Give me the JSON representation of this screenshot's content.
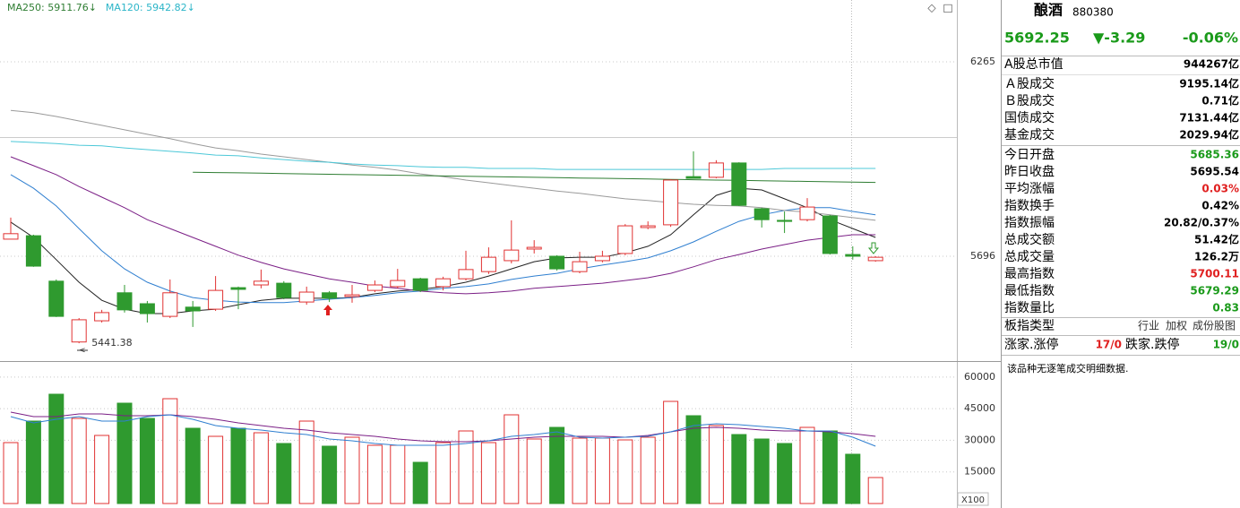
{
  "legend": [
    {
      "text": "MA250: 5911.76↓",
      "color": "#2e7d32"
    },
    {
      "text": "MA120: 5942.82↓",
      "color": "#2bb5c8"
    }
  ],
  "chart_data": [
    {
      "type": "candlestick",
      "up_color": "#e03232",
      "down_color": "#2f9a2f",
      "open": [
        5746,
        5756,
        5623,
        5445,
        5507,
        5589,
        5557,
        5520,
        5547,
        5541,
        5604,
        5612,
        5617,
        5562,
        5589,
        5578,
        5596,
        5607,
        5630,
        5607,
        5630,
        5651,
        5683,
        5717,
        5696,
        5651,
        5683,
        5704,
        5780,
        5788,
        5929,
        5927,
        5969,
        5835,
        5801,
        5803,
        5814,
        5701,
        5683
      ],
      "high": [
        5809,
        5759,
        5628,
        5515,
        5539,
        5612,
        5565,
        5628,
        5565,
        5638,
        5607,
        5657,
        5623,
        5607,
        5594,
        5612,
        5625,
        5659,
        5633,
        5636,
        5712,
        5722,
        5801,
        5743,
        5699,
        5709,
        5712,
        5790,
        5798,
        5921,
        6003,
        5977,
        5971,
        5838,
        5827,
        5866,
        5817,
        5725,
        5696
      ],
      "low": [
        5746,
        5665,
        5518,
        5441.38,
        5502,
        5531,
        5502,
        5515,
        5489,
        5536,
        5541,
        5602,
        5570,
        5554,
        5562,
        5560,
        5591,
        5602,
        5591,
        5596,
        5625,
        5644,
        5675,
        5704,
        5654,
        5646,
        5678,
        5699,
        5775,
        5782,
        5924,
        5924,
        5843,
        5780,
        5764,
        5798,
        5701,
        5686,
        5680
      ],
      "close": [
        5762,
        5667,
        5520,
        5510,
        5531,
        5539,
        5528,
        5589,
        5536,
        5596,
        5599,
        5623,
        5575,
        5591,
        5573,
        5583,
        5612,
        5625,
        5596,
        5630,
        5657,
        5693,
        5714,
        5722,
        5659,
        5680,
        5696,
        5785,
        5785,
        5919,
        5924,
        5969,
        5845,
        5803,
        5798,
        5840,
        5704,
        5696,
        5693
      ],
      "ylim": [
        5397,
        6446
      ],
      "yticks": [
        5696,
        6265
      ],
      "series": [
        {
          "color": "#222222",
          "values": [
            5796,
            5751,
            5686,
            5620,
            5567,
            5541,
            5528,
            5528,
            5536,
            5541,
            5554,
            5567,
            5573,
            5573,
            5573,
            5575,
            5586,
            5594,
            5599,
            5607,
            5620,
            5638,
            5659,
            5680,
            5691,
            5693,
            5693,
            5706,
            5725,
            5759,
            5817,
            5874,
            5895,
            5890,
            5864,
            5838,
            5803,
            5777,
            5751
          ]
        },
        {
          "color": "#2f7fd0",
          "values": [
            5935,
            5895,
            5843,
            5777,
            5712,
            5659,
            5620,
            5594,
            5575,
            5567,
            5562,
            5560,
            5560,
            5565,
            5570,
            5575,
            5581,
            5589,
            5594,
            5602,
            5607,
            5615,
            5628,
            5638,
            5646,
            5659,
            5670,
            5680,
            5691,
            5712,
            5738,
            5769,
            5798,
            5817,
            5830,
            5838,
            5838,
            5827,
            5817
          ]
        },
        {
          "color": "#7b1f86",
          "values": [
            5987,
            5961,
            5935,
            5900,
            5869,
            5838,
            5803,
            5777,
            5751,
            5725,
            5699,
            5678,
            5659,
            5644,
            5630,
            5620,
            5609,
            5602,
            5594,
            5589,
            5586,
            5589,
            5594,
            5602,
            5607,
            5612,
            5617,
            5625,
            5633,
            5646,
            5665,
            5686,
            5701,
            5717,
            5730,
            5743,
            5751,
            5759,
            5759
          ]
        },
        {
          "color": "#9a9a9a",
          "values": [
            6123,
            6116,
            6105,
            6092,
            6079,
            6066,
            6053,
            6040,
            6026,
            6013,
            6005,
            5995,
            5987,
            5979,
            5971,
            5963,
            5956,
            5948,
            5937,
            5929,
            5919,
            5911,
            5903,
            5895,
            5887,
            5880,
            5872,
            5864,
            5859,
            5853,
            5848,
            5845,
            5843,
            5838,
            5830,
            5825,
            5817,
            5809,
            5801
          ]
        },
        {
          "color": "#4cc8d8",
          "values": [
            6032,
            6029,
            6026,
            6021,
            6019,
            6013,
            6008,
            6003,
            5998,
            5992,
            5990,
            5984,
            5979,
            5974,
            5971,
            5966,
            5963,
            5961,
            5958,
            5956,
            5956,
            5953,
            5953,
            5953,
            5950,
            5950,
            5950,
            5950,
            5950,
            5950,
            5950,
            5950,
            5950,
            5950,
            5953,
            5953,
            5953,
            5953,
            5953
          ]
        },
        {
          "color": "#2e7d32",
          "values": [
            null,
            null,
            null,
            null,
            null,
            null,
            null,
            null,
            5942,
            5941,
            5940,
            5939,
            5938,
            5937,
            5936,
            5935,
            5934,
            5933,
            5932,
            5931,
            5930,
            5929,
            5928,
            5927,
            5926,
            5925,
            5924,
            5923,
            5922,
            5921,
            5920,
            5919,
            5918,
            5917,
            5916,
            5915,
            5914,
            5913,
            5912
          ]
        }
      ]
    },
    {
      "type": "bar",
      "unit": "X100",
      "values": [
        28900,
        39100,
        51850,
        40375,
        32300,
        47600,
        40375,
        49725,
        35700,
        31875,
        35700,
        33575,
        28475,
        39100,
        27200,
        31450,
        27625,
        27625,
        19550,
        28900,
        34425,
        28900,
        42075,
        30600,
        36125,
        31025,
        31025,
        30175,
        31450,
        48450,
        41650,
        36975,
        32725,
        30600,
        28475,
        36125,
        34425,
        23375,
        12325
      ],
      "ylim": [
        0,
        66725
      ],
      "yticks": [
        15000,
        30000,
        45000,
        60000
      ],
      "series": [
        {
          "color": "#7b1f86",
          "values": [
            43350,
            41225,
            41225,
            42500,
            42500,
            41650,
            41650,
            42075,
            41225,
            39950,
            38250,
            36975,
            35700,
            34850,
            33575,
            32725,
            31875,
            30600,
            29750,
            29325,
            29325,
            29750,
            30600,
            31450,
            31875,
            31875,
            31875,
            31450,
            32300,
            34000,
            35700,
            36125,
            35700,
            34850,
            34425,
            34425,
            34000,
            33150,
            31875
          ]
        },
        {
          "color": "#2f7fd0",
          "values": [
            41225,
            38250,
            39950,
            41225,
            39100,
            39100,
            41225,
            42075,
            39950,
            36975,
            35700,
            34850,
            33575,
            32725,
            30600,
            29750,
            28475,
            27625,
            27625,
            27625,
            28475,
            29750,
            31875,
            32725,
            34000,
            31450,
            31025,
            31450,
            31875,
            34000,
            36975,
            37825,
            37400,
            36550,
            35700,
            34425,
            34425,
            31450,
            27200
          ]
        }
      ]
    }
  ],
  "panel": {
    "name": "酿酒",
    "code": "880380",
    "price": "5692.25",
    "change": "▼-3.29",
    "change_pct": "-0.06%",
    "rows": [
      {
        "label": "A股总市值",
        "value": "944267亿",
        "color": "#000000"
      },
      {
        "label": "Ａ股成交",
        "value": "9195.14亿",
        "color": "#000000"
      },
      {
        "label": "Ｂ股成交",
        "value": "0.71亿",
        "color": "#000000"
      },
      {
        "label": "国债成交",
        "value": "7131.44亿",
        "color": "#000000"
      },
      {
        "label": "基金成交",
        "value": "2029.94亿",
        "color": "#000000"
      },
      {
        "label": "今日开盘",
        "value": "5685.36",
        "color": "#1a9a1a"
      },
      {
        "label": "昨日收盘",
        "value": "5695.54",
        "color": "#000000"
      },
      {
        "label": "平均涨幅",
        "value": "0.03%",
        "color": "#e02020"
      },
      {
        "label": "指数换手",
        "value": "0.42%",
        "color": "#000000"
      },
      {
        "label": "指数振幅",
        "value": "20.82/0.37%",
        "color": "#000000"
      },
      {
        "label": "总成交额",
        "value": "51.42亿",
        "color": "#000000"
      },
      {
        "label": "总成交量",
        "value": "126.2万",
        "color": "#000000"
      },
      {
        "label": "最高指数",
        "value": "5700.11",
        "color": "#e02020"
      },
      {
        "label": "最低指数",
        "value": "5679.29",
        "color": "#1a9a1a"
      },
      {
        "label": "指数量比",
        "value": "0.83",
        "color": "#1a9a1a"
      }
    ],
    "type_row": {
      "label": "板指类型",
      "links": [
        "行业",
        "加权",
        "成份股图"
      ]
    },
    "breadth": {
      "up_label": "涨家.涨停",
      "up_value": "17/0",
      "down_label": "跌家.跌停",
      "down_value": "19/0"
    },
    "note": "该品种无逐笔成交明细数据."
  }
}
